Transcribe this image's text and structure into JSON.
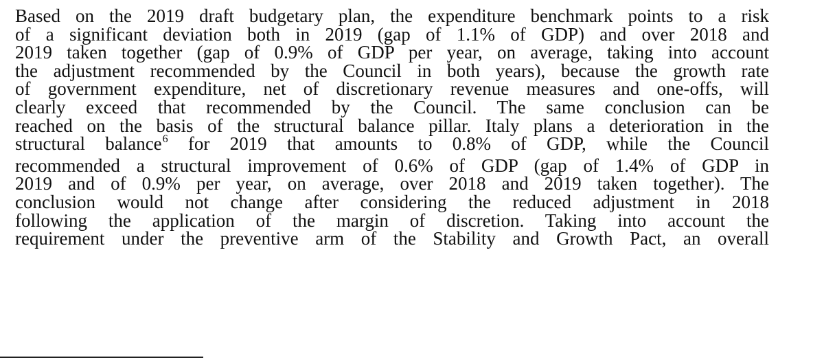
{
  "document": {
    "lines": [
      "Based on the 2019 draft budgetary plan, the expenditure benchmark points to a risk",
      "of a significant deviation both in 2019 (gap of 1.1% of GDP) and over 2018 and",
      "2019 taken together (gap of 0.9% of GDP per year, on average, taking into account",
      "the adjustment recommended by the Council in both years), because the growth rate",
      "of government expenditure, net of discretionary revenue measures and one-offs, will",
      "clearly exceed that recommended by the Council. The same conclusion can be",
      "reached on the basis of the structural balance pillar. Italy plans a deterioration in the",
      "",
      "recommended a structural improvement of 0.6% of GDP (gap of 1.4% of GDP in",
      "2019 and of 0.9% per year, on average, over 2018 and 2019 taken together). The",
      "conclusion would not change after considering the reduced adjustment in 2018",
      "following the application of the margin of discretion. Taking into account the",
      "requirement under the preventive arm of the Stability and Growth Pact, an overall"
    ],
    "line8": {
      "before": "structural balance",
      "footnote_ref": "6",
      "after": " for 2019 that amounts to 0.8% of GDP, while the Council"
    }
  }
}
